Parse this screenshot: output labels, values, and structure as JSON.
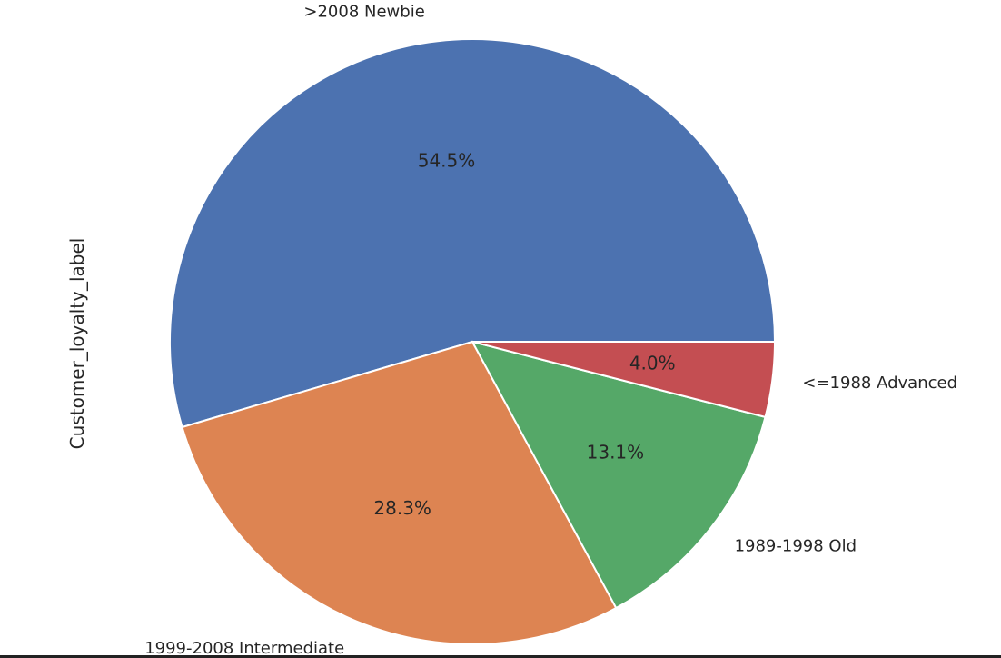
{
  "chart_data": {
    "type": "pie",
    "ylabel": "Customer_loyalty_label",
    "start_angle_deg": 0,
    "direction": "counterclockwise",
    "slices": [
      {
        "label": ">2008 Newbie",
        "value": 54.5,
        "pct_label": "54.5%",
        "color": "#4c72b0"
      },
      {
        "label": "1999-2008 Intermediate",
        "value": 28.3,
        "pct_label": "28.3%",
        "color": "#dd8452"
      },
      {
        "label": "1989-1998 Old",
        "value": 13.1,
        "pct_label": "13.1%",
        "color": "#55a868"
      },
      {
        "label": "<=1988 Advanced",
        "value": 4.0,
        "pct_label": "4.0%",
        "color": "#c44e52"
      }
    ]
  }
}
